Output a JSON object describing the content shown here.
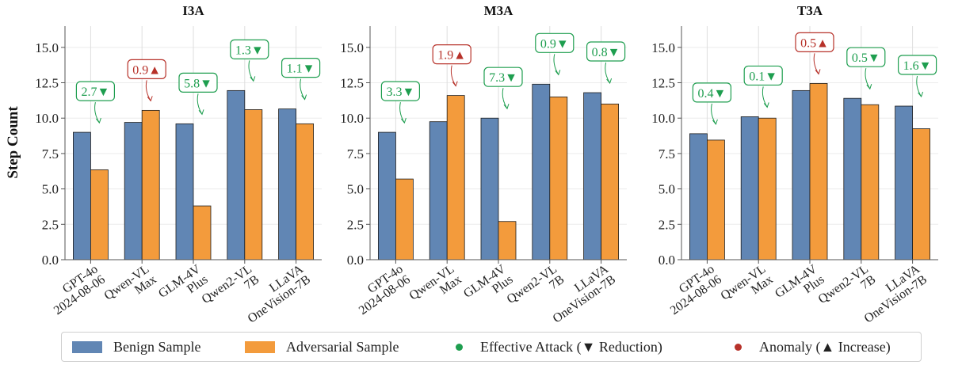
{
  "ylabel": "Step Count",
  "colors": {
    "benign": "#6186b4",
    "adversarial": "#f39b3c",
    "effective": "#1e9e4f",
    "anomaly": "#b7322a"
  },
  "legend": {
    "benign": "Benign Sample",
    "adversarial": "Adversarial Sample",
    "effective": "Effective Attack (▼ Reduction)",
    "anomaly": "Anomaly (▲ Increase)"
  },
  "chart_data": [
    {
      "type": "bar",
      "title": "I3A",
      "categories": [
        "GPT-4o 2024-08-06",
        "Qwen-VL Max",
        "GLM-4V Plus",
        "Qwen2-VL 7B",
        "LLaVA OneVision-7B"
      ],
      "series": [
        {
          "name": "Benign Sample",
          "values": [
            9.0,
            9.7,
            9.6,
            11.95,
            10.65
          ]
        },
        {
          "name": "Adversarial Sample",
          "values": [
            6.35,
            10.55,
            3.8,
            10.6,
            9.6
          ]
        }
      ],
      "annotations": [
        "2.7▼",
        "0.9▲",
        "5.8▼",
        "1.3▼",
        "1.1▼"
      ],
      "annotation_types": [
        "effective",
        "anomaly",
        "effective",
        "effective",
        "effective"
      ],
      "yticks": [
        "0.0",
        "2.5",
        "5.0",
        "7.5",
        "10.0",
        "12.5",
        "15.0"
      ],
      "ylim": [
        0,
        16.5
      ]
    },
    {
      "type": "bar",
      "title": "M3A",
      "categories": [
        "GPT-4o 2024-08-06",
        "Qwen-VL Max",
        "GLM-4V Plus",
        "Qwen2-VL 7B",
        "LLaVA OneVision-7B"
      ],
      "series": [
        {
          "name": "Benign Sample",
          "values": [
            9.0,
            9.75,
            10.0,
            12.4,
            11.8
          ]
        },
        {
          "name": "Adversarial Sample",
          "values": [
            5.7,
            11.6,
            2.7,
            11.5,
            11.0
          ]
        }
      ],
      "annotations": [
        "3.3▼",
        "1.9▲",
        "7.3▼",
        "0.9▼",
        "0.8▼"
      ],
      "annotation_types": [
        "effective",
        "anomaly",
        "effective",
        "effective",
        "effective"
      ],
      "yticks": [
        "0.0",
        "2.5",
        "5.0",
        "7.5",
        "10.0",
        "12.5",
        "15.0"
      ],
      "ylim": [
        0,
        16.5
      ]
    },
    {
      "type": "bar",
      "title": "T3A",
      "categories": [
        "GPT-4o 2024-08-06",
        "Qwen-VL Max",
        "GLM-4V Plus",
        "Qwen2-VL 7B",
        "LLaVA OneVision-7B"
      ],
      "series": [
        {
          "name": "Benign Sample",
          "values": [
            8.9,
            10.1,
            11.95,
            11.4,
            10.85
          ]
        },
        {
          "name": "Adversarial Sample",
          "values": [
            8.45,
            10.0,
            12.45,
            10.95,
            9.25
          ]
        }
      ],
      "annotations": [
        "0.4▼",
        "0.1▼",
        "0.5▲",
        "0.5▼",
        "1.6▼"
      ],
      "annotation_types": [
        "effective",
        "effective",
        "anomaly",
        "effective",
        "effective"
      ],
      "yticks": [
        "0.0",
        "2.5",
        "5.0",
        "7.5",
        "10.0",
        "12.5",
        "15.0"
      ],
      "ylim": [
        0,
        16.5
      ]
    }
  ]
}
